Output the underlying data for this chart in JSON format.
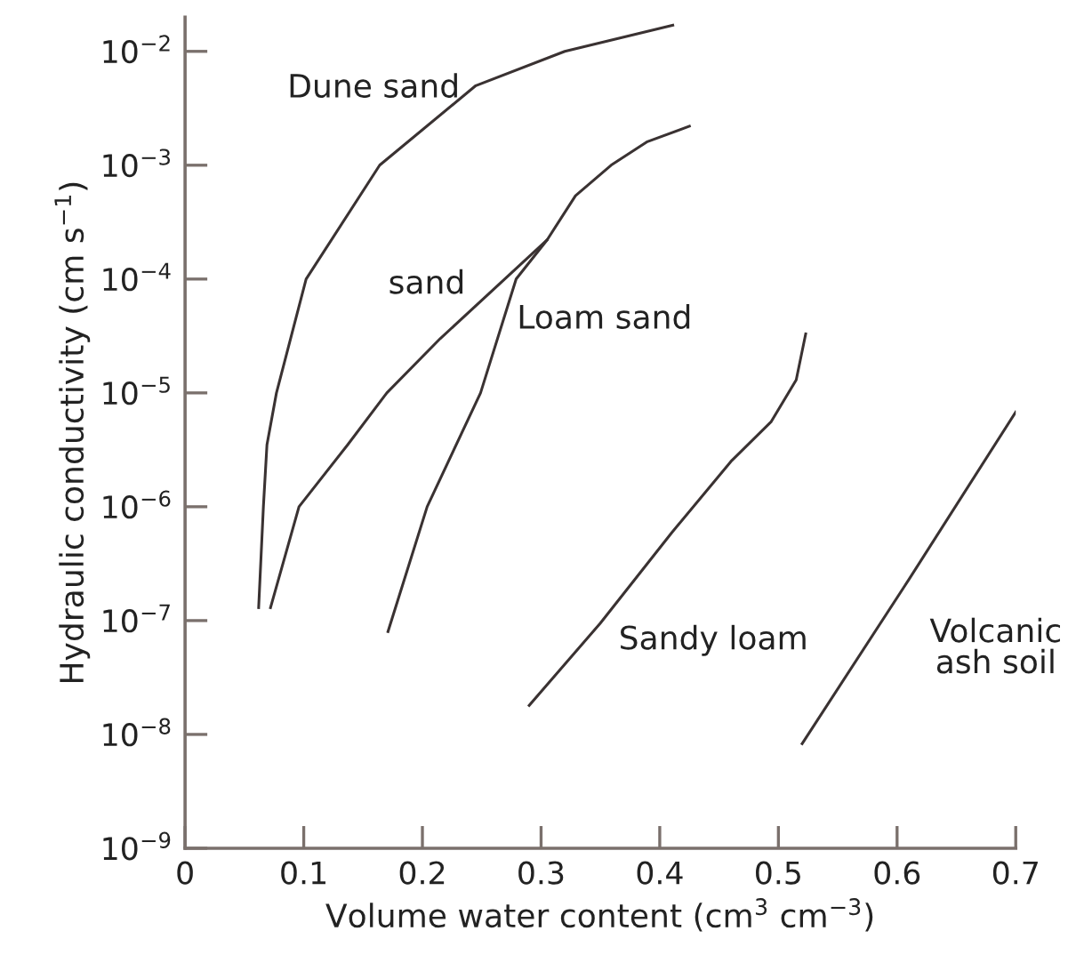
{
  "chart_data": {
    "type": "line",
    "xlabel": "Volume water content (cm$^{3}$ cm$^{−3}$)",
    "ylabel": "Hydraulic conductivity (cm s$^{−1}$)",
    "log": "y",
    "xlim": [
      0,
      0.7
    ],
    "ylim": [
      1e-09,
      0.02
    ],
    "xticks": [
      0,
      0.1,
      0.2,
      0.3,
      0.4,
      0.5,
      0.6,
      0.7
    ],
    "yticks": [
      {
        "value": 1e-09,
        "label": "10$^{−9}$"
      },
      {
        "value": 1e-08,
        "label": "10$^{−8}$"
      },
      {
        "value": 1e-07,
        "label": "10$^{−7}$"
      },
      {
        "value": 1e-06,
        "label": "10$^{−6}$"
      },
      {
        "value": 1e-05,
        "label": "10$^{−5}$"
      },
      {
        "value": 0.0001,
        "label": "10$^{−4}$"
      },
      {
        "value": 0.001,
        "label": "10$^{−3}$"
      },
      {
        "value": 0.01,
        "label": "10$^{−2}$"
      }
    ],
    "grid": false,
    "legend": false,
    "marker": "none",
    "line_style": "solid",
    "series": [
      {
        "name": "Dune sand",
        "color": "#3a3232",
        "x": [
          0.062,
          0.066,
          0.069,
          0.077,
          0.102,
          0.164,
          0.245,
          0.32,
          0.411
        ],
        "values": [
          1.3e-07,
          1e-06,
          3.5e-06,
          1e-05,
          0.0001,
          0.001,
          0.005,
          0.01,
          0.017
        ]
      },
      {
        "name": "sand",
        "color": "#3a3232",
        "x": [
          0.072,
          0.096,
          0.137,
          0.17,
          0.215,
          0.305
        ],
        "values": [
          1.3e-07,
          1e-06,
          3.5e-06,
          1e-05,
          3e-05,
          0.00022
        ]
      },
      {
        "name": "Loam sand",
        "color": "#3a3232",
        "x": [
          0.171,
          0.204,
          0.249,
          0.279,
          0.305,
          0.329,
          0.359,
          0.389,
          0.425
        ],
        "values": [
          8e-08,
          1e-06,
          1e-05,
          0.0001,
          0.00022,
          0.00054,
          0.001,
          0.0016,
          0.0022
        ]
      },
      {
        "name": "Sandy loam",
        "color": "#3a3232",
        "x": [
          0.29,
          0.35,
          0.41,
          0.46,
          0.494,
          0.515,
          0.523
        ],
        "values": [
          1.8e-08,
          9.5e-08,
          5.9e-07,
          2.5e-06,
          5.6e-06,
          1.3e-05,
          3.3e-05
        ]
      },
      {
        "name": "Volcanic\nash soil",
        "color": "#3a3232",
        "x": [
          0.52,
          0.61,
          0.7
        ],
        "values": [
          8.3e-09,
          2.3e-07,
          6.8e-06
        ]
      }
    ]
  }
}
